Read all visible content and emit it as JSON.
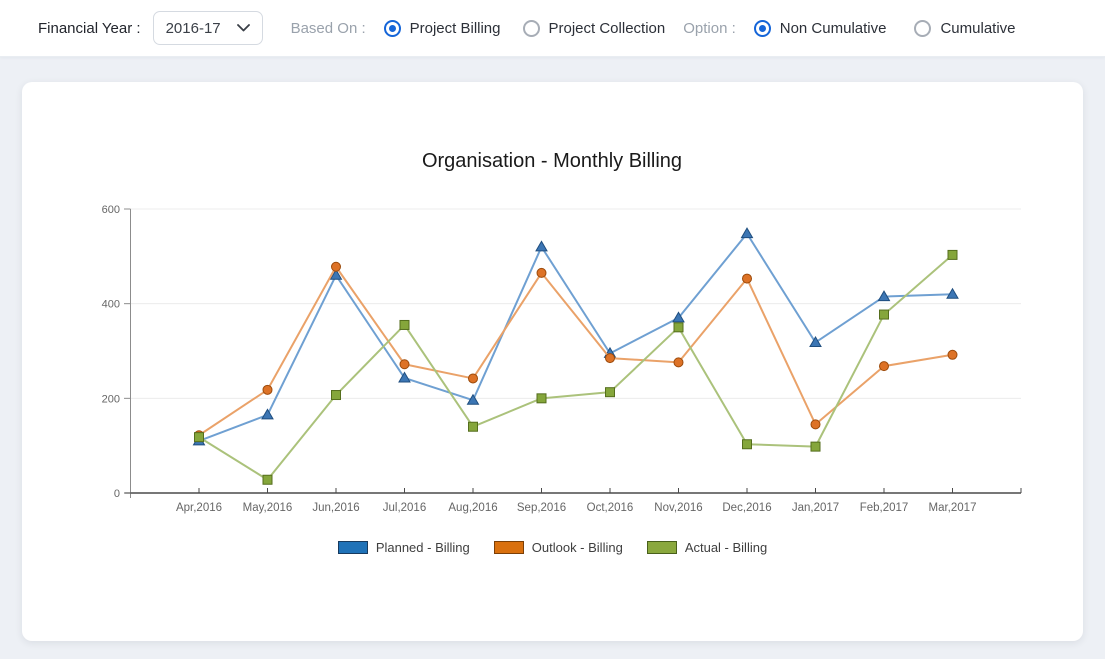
{
  "toolbar": {
    "financial_year_label": "Financial Year :",
    "financial_year_value": "2016-17",
    "based_on_label": "Based On :",
    "based_on_options": [
      {
        "label": "Project Billing",
        "selected": true
      },
      {
        "label": "Project Collection",
        "selected": false
      }
    ],
    "option_label": "Option :",
    "option_options": [
      {
        "label": "Non Cumulative",
        "selected": true
      },
      {
        "label": "Cumulative",
        "selected": false
      }
    ],
    "accent_color": "#1565d8"
  },
  "chart_data": {
    "type": "line",
    "title": "Organisation - Monthly Billing",
    "xlabel": "",
    "ylabel": "",
    "ylim": [
      0,
      600
    ],
    "yticks": [
      0,
      200,
      400,
      600
    ],
    "grid": true,
    "legend_position": "bottom",
    "categories": [
      "Apr,2016",
      "May,2016",
      "Jun,2016",
      "Jul,2016",
      "Aug,2016",
      "Sep,2016",
      "Oct,2016",
      "Nov,2016",
      "Dec,2016",
      "Jan,2017",
      "Feb,2017",
      "Mar,2017"
    ],
    "series": [
      {
        "name": "Planned - Billing",
        "marker": "triangle",
        "line_color": "#6fa0d2",
        "marker_fill": "#3c76b4",
        "marker_stroke": "#1f4e7f",
        "legend_fill": "#1f72b8",
        "legend_border": "#173a5e",
        "values": [
          110,
          165,
          460,
          243,
          196,
          520,
          295,
          370,
          548,
          318,
          415,
          420
        ]
      },
      {
        "name": "Outlook - Billing",
        "marker": "circle",
        "line_color": "#eaa269",
        "marker_fill": "#dd7226",
        "marker_stroke": "#9c4a0a",
        "legend_fill": "#d9700e",
        "legend_border": "#7c3f06",
        "values": [
          122,
          218,
          478,
          272,
          242,
          465,
          285,
          276,
          453,
          145,
          268,
          292
        ]
      },
      {
        "name": "Actual - Billing",
        "marker": "square",
        "line_color": "#abc27b",
        "marker_fill": "#85a63b",
        "marker_stroke": "#556e1d",
        "legend_fill": "#8aa83d",
        "legend_border": "#49601b",
        "values": [
          118,
          28,
          207,
          355,
          140,
          200,
          213,
          350,
          103,
          98,
          377,
          503
        ]
      }
    ],
    "style": {
      "title_color": "#1a1a1a",
      "grid_color": "#ececec",
      "x_axis_color": "#4a4a4a",
      "y_axis_color": "#8c8c8c",
      "tick_label_color": "#666666",
      "legend_text_color": "#3f3f3f"
    }
  }
}
